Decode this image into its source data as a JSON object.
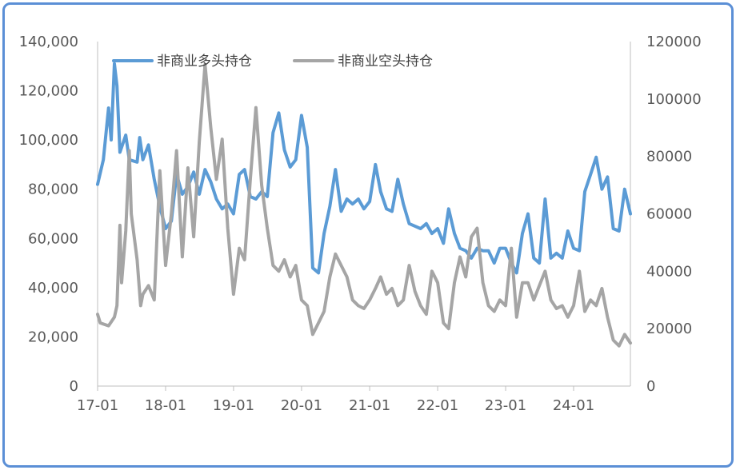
{
  "chart_data": {
    "type": "line",
    "title": "",
    "xlabel": "",
    "ylabel": "",
    "x_tick_labels": [
      "17-01",
      "18-01",
      "19-01",
      "20-01",
      "21-01",
      "22-01",
      "23-01",
      "24-01"
    ],
    "x_tick_dates": [
      "2017-01-01",
      "2018-01-01",
      "2019-01-01",
      "2020-01-01",
      "2021-01-01",
      "2022-01-01",
      "2023-01-01",
      "2024-01-01"
    ],
    "x_range": [
      "2017-01-01",
      "2024-11-01"
    ],
    "ylim_left": [
      0,
      140000
    ],
    "ylim_right": [
      0,
      120000
    ],
    "left_ticks": [
      0,
      20000,
      40000,
      60000,
      80000,
      100000,
      120000,
      140000
    ],
    "left_tick_labels": [
      "0",
      "20,000",
      "40,000",
      "60,000",
      "80,000",
      "100,000",
      "120,000",
      "140,000"
    ],
    "right_ticks": [
      0,
      20000,
      40000,
      60000,
      80000,
      100000,
      120000
    ],
    "right_tick_labels": [
      "0",
      "20000",
      "40000",
      "60000",
      "80000",
      "100000",
      "120000"
    ],
    "grid": false,
    "legend_position": "top-left",
    "series": [
      {
        "name": "非商业多头持仓",
        "axis": "left",
        "color": "#5b9bd5",
        "points": [
          [
            "2017-01-01",
            82000
          ],
          [
            "2017-02-01",
            92000
          ],
          [
            "2017-03-01",
            113000
          ],
          [
            "2017-03-15",
            100000
          ],
          [
            "2017-04-01",
            131000
          ],
          [
            "2017-04-15",
            122000
          ],
          [
            "2017-05-01",
            95000
          ],
          [
            "2017-06-01",
            102000
          ],
          [
            "2017-06-20",
            92000
          ],
          [
            "2017-08-01",
            91000
          ],
          [
            "2017-08-15",
            101000
          ],
          [
            "2017-09-01",
            92000
          ],
          [
            "2017-10-01",
            98000
          ],
          [
            "2017-11-01",
            84000
          ],
          [
            "2017-12-01",
            73000
          ],
          [
            "2018-01-01",
            64000
          ],
          [
            "2018-02-01",
            67000
          ],
          [
            "2018-03-01",
            86000
          ],
          [
            "2018-04-01",
            78000
          ],
          [
            "2018-05-01",
            81000
          ],
          [
            "2018-06-01",
            87000
          ],
          [
            "2018-07-01",
            78000
          ],
          [
            "2018-08-01",
            88000
          ],
          [
            "2018-09-01",
            83000
          ],
          [
            "2018-10-01",
            76000
          ],
          [
            "2018-11-01",
            72000
          ],
          [
            "2018-12-01",
            74000
          ],
          [
            "2019-01-01",
            70000
          ],
          [
            "2019-02-01",
            86000
          ],
          [
            "2019-03-01",
            88000
          ],
          [
            "2019-04-01",
            77000
          ],
          [
            "2019-05-01",
            76000
          ],
          [
            "2019-06-01",
            79000
          ],
          [
            "2019-07-01",
            77000
          ],
          [
            "2019-08-01",
            103000
          ],
          [
            "2019-09-01",
            111000
          ],
          [
            "2019-10-01",
            96000
          ],
          [
            "2019-11-01",
            89000
          ],
          [
            "2019-12-01",
            92000
          ],
          [
            "2020-01-01",
            110000
          ],
          [
            "2020-02-01",
            97000
          ],
          [
            "2020-03-01",
            48000
          ],
          [
            "2020-04-01",
            46000
          ],
          [
            "2020-05-01",
            62000
          ],
          [
            "2020-06-01",
            73000
          ],
          [
            "2020-07-01",
            88000
          ],
          [
            "2020-08-01",
            71000
          ],
          [
            "2020-09-01",
            76000
          ],
          [
            "2020-10-01",
            74000
          ],
          [
            "2020-11-01",
            76000
          ],
          [
            "2020-12-01",
            72000
          ],
          [
            "2021-01-01",
            75000
          ],
          [
            "2021-02-01",
            90000
          ],
          [
            "2021-03-01",
            79000
          ],
          [
            "2021-04-01",
            72000
          ],
          [
            "2021-05-01",
            71000
          ],
          [
            "2021-06-01",
            84000
          ],
          [
            "2021-07-01",
            74000
          ],
          [
            "2021-08-01",
            66000
          ],
          [
            "2021-09-01",
            65000
          ],
          [
            "2021-10-01",
            64000
          ],
          [
            "2021-11-01",
            66000
          ],
          [
            "2021-12-01",
            62000
          ],
          [
            "2022-01-01",
            64000
          ],
          [
            "2022-02-01",
            58000
          ],
          [
            "2022-03-01",
            72000
          ],
          [
            "2022-04-01",
            62000
          ],
          [
            "2022-05-01",
            56000
          ],
          [
            "2022-06-01",
            55000
          ],
          [
            "2022-07-01",
            52000
          ],
          [
            "2022-08-01",
            56000
          ],
          [
            "2022-09-01",
            55000
          ],
          [
            "2022-10-01",
            55000
          ],
          [
            "2022-11-01",
            50000
          ],
          [
            "2022-12-01",
            56000
          ],
          [
            "2023-01-01",
            56000
          ],
          [
            "2023-02-01",
            50000
          ],
          [
            "2023-03-01",
            46000
          ],
          [
            "2023-04-01",
            62000
          ],
          [
            "2023-05-01",
            70000
          ],
          [
            "2023-06-01",
            52000
          ],
          [
            "2023-07-01",
            50000
          ],
          [
            "2023-08-01",
            76000
          ],
          [
            "2023-09-01",
            52000
          ],
          [
            "2023-10-01",
            54000
          ],
          [
            "2023-11-01",
            52000
          ],
          [
            "2023-12-01",
            63000
          ],
          [
            "2024-01-01",
            56000
          ],
          [
            "2024-02-01",
            55000
          ],
          [
            "2024-03-01",
            79000
          ],
          [
            "2024-04-01",
            86000
          ],
          [
            "2024-05-01",
            93000
          ],
          [
            "2024-06-01",
            80000
          ],
          [
            "2024-07-01",
            85000
          ],
          [
            "2024-08-01",
            64000
          ],
          [
            "2024-09-01",
            63000
          ],
          [
            "2024-10-01",
            80000
          ],
          [
            "2024-11-01",
            70000
          ]
        ]
      },
      {
        "name": "非商业空头持仓",
        "axis": "right",
        "color": "#a5a5a5",
        "points": [
          [
            "2017-01-01",
            25000
          ],
          [
            "2017-01-15",
            22000
          ],
          [
            "2017-03-01",
            21000
          ],
          [
            "2017-04-01",
            24000
          ],
          [
            "2017-04-15",
            28000
          ],
          [
            "2017-05-01",
            56000
          ],
          [
            "2017-05-10",
            36000
          ],
          [
            "2017-06-01",
            54000
          ],
          [
            "2017-06-20",
            82000
          ],
          [
            "2017-07-01",
            60000
          ],
          [
            "2017-08-01",
            44000
          ],
          [
            "2017-08-20",
            28000
          ],
          [
            "2017-09-01",
            32000
          ],
          [
            "2017-10-01",
            35000
          ],
          [
            "2017-11-01",
            30000
          ],
          [
            "2017-12-01",
            75000
          ],
          [
            "2018-01-01",
            42000
          ],
          [
            "2018-02-01",
            60000
          ],
          [
            "2018-03-01",
            82000
          ],
          [
            "2018-04-01",
            45000
          ],
          [
            "2018-05-01",
            76000
          ],
          [
            "2018-06-01",
            52000
          ],
          [
            "2018-07-01",
            85000
          ],
          [
            "2018-08-01",
            112000
          ],
          [
            "2018-09-01",
            90000
          ],
          [
            "2018-10-01",
            72000
          ],
          [
            "2018-11-01",
            86000
          ],
          [
            "2018-12-01",
            55000
          ],
          [
            "2019-01-01",
            32000
          ],
          [
            "2019-02-01",
            48000
          ],
          [
            "2019-03-01",
            44000
          ],
          [
            "2019-04-01",
            72000
          ],
          [
            "2019-05-01",
            97000
          ],
          [
            "2019-06-01",
            70000
          ],
          [
            "2019-07-01",
            55000
          ],
          [
            "2019-08-01",
            42000
          ],
          [
            "2019-09-01",
            40000
          ],
          [
            "2019-10-01",
            44000
          ],
          [
            "2019-11-01",
            38000
          ],
          [
            "2019-12-01",
            42000
          ],
          [
            "2020-01-01",
            30000
          ],
          [
            "2020-02-01",
            28000
          ],
          [
            "2020-03-01",
            18000
          ],
          [
            "2020-04-01",
            22000
          ],
          [
            "2020-05-01",
            26000
          ],
          [
            "2020-06-01",
            38000
          ],
          [
            "2020-07-01",
            46000
          ],
          [
            "2020-08-01",
            42000
          ],
          [
            "2020-09-01",
            38000
          ],
          [
            "2020-10-01",
            30000
          ],
          [
            "2020-11-01",
            28000
          ],
          [
            "2020-12-01",
            27000
          ],
          [
            "2021-01-01",
            30000
          ],
          [
            "2021-02-01",
            34000
          ],
          [
            "2021-03-01",
            38000
          ],
          [
            "2021-04-01",
            32000
          ],
          [
            "2021-05-01",
            34000
          ],
          [
            "2021-06-01",
            28000
          ],
          [
            "2021-07-01",
            30000
          ],
          [
            "2021-08-01",
            42000
          ],
          [
            "2021-09-01",
            33000
          ],
          [
            "2021-10-01",
            28000
          ],
          [
            "2021-11-01",
            25000
          ],
          [
            "2021-12-01",
            40000
          ],
          [
            "2022-01-01",
            36000
          ],
          [
            "2022-02-01",
            22000
          ],
          [
            "2022-03-01",
            20000
          ],
          [
            "2022-04-01",
            36000
          ],
          [
            "2022-05-01",
            45000
          ],
          [
            "2022-06-01",
            38000
          ],
          [
            "2022-07-01",
            52000
          ],
          [
            "2022-08-01",
            55000
          ],
          [
            "2022-09-01",
            36000
          ],
          [
            "2022-10-01",
            28000
          ],
          [
            "2022-11-01",
            26000
          ],
          [
            "2022-12-01",
            30000
          ],
          [
            "2023-01-01",
            28000
          ],
          [
            "2023-02-01",
            48000
          ],
          [
            "2023-03-01",
            24000
          ],
          [
            "2023-04-01",
            36000
          ],
          [
            "2023-05-01",
            36000
          ],
          [
            "2023-06-01",
            30000
          ],
          [
            "2023-07-01",
            35000
          ],
          [
            "2023-08-01",
            40000
          ],
          [
            "2023-09-01",
            30000
          ],
          [
            "2023-10-01",
            27000
          ],
          [
            "2023-11-01",
            28000
          ],
          [
            "2023-12-01",
            24000
          ],
          [
            "2024-01-01",
            28000
          ],
          [
            "2024-02-01",
            40000
          ],
          [
            "2024-03-01",
            26000
          ],
          [
            "2024-04-01",
            30000
          ],
          [
            "2024-05-01",
            28000
          ],
          [
            "2024-06-01",
            34000
          ],
          [
            "2024-07-01",
            24000
          ],
          [
            "2024-08-01",
            16000
          ],
          [
            "2024-09-01",
            14000
          ],
          [
            "2024-10-01",
            18000
          ],
          [
            "2024-11-01",
            15000
          ]
        ]
      }
    ]
  }
}
